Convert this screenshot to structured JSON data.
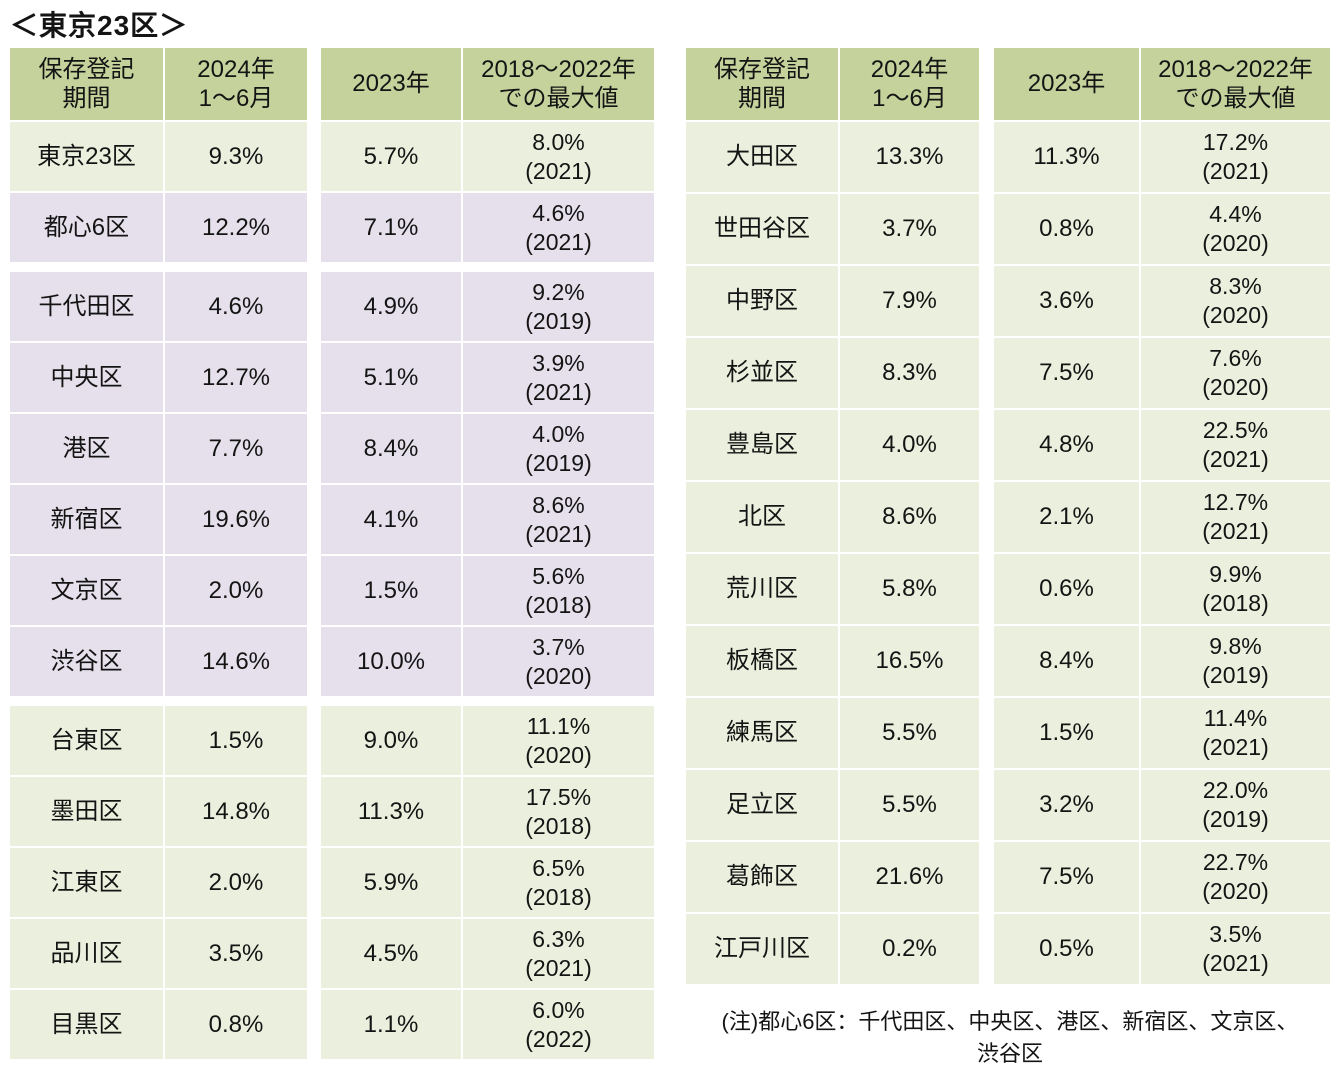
{
  "title": "＜東京23区＞",
  "note": "(注)都心6区：千代田区、中央区、港区、新宿区、文京区、\n渋谷区",
  "colors": {
    "header_green": "#C5D29C",
    "row_light_green": "#EBF0DE",
    "row_lavender": "#E5E0EB",
    "text": "#141414",
    "background": "#FFFFFF"
  },
  "chart_data": [
    {
      "type": "table",
      "title": "＜東京23区＞ (左表)",
      "columns": [
        "保存登記\n期間",
        "2024年\n1～6月",
        "2023年",
        "2018～2022年\nでの最大値"
      ],
      "rows": [
        [
          "東京23区",
          "9.3%",
          "5.7%",
          "8.0%\n(2021)"
        ],
        [
          "都心6区",
          "12.2%",
          "7.1%",
          "4.6%\n(2021)"
        ],
        [
          "千代田区",
          "4.6%",
          "4.9%",
          "9.2%\n(2019)"
        ],
        [
          "中央区",
          "12.7%",
          "5.1%",
          "3.9%\n(2021)"
        ],
        [
          "港区",
          "7.7%",
          "8.4%",
          "4.0%\n(2019)"
        ],
        [
          "新宿区",
          "19.6%",
          "4.1%",
          "8.6%\n(2021)"
        ],
        [
          "文京区",
          "2.0%",
          "1.5%",
          "5.6%\n(2018)"
        ],
        [
          "渋谷区",
          "14.6%",
          "10.0%",
          "3.7%\n(2020)"
        ],
        [
          "台東区",
          "1.5%",
          "9.0%",
          "11.1%\n(2020)"
        ],
        [
          "墨田区",
          "14.8%",
          "11.3%",
          "17.5%\n(2018)"
        ],
        [
          "江東区",
          "2.0%",
          "5.9%",
          "6.5%\n(2018)"
        ],
        [
          "品川区",
          "3.5%",
          "4.5%",
          "6.3%\n(2021)"
        ],
        [
          "目黒区",
          "0.8%",
          "1.1%",
          "6.0%\n(2022)"
        ]
      ]
    },
    {
      "type": "table",
      "title": "＜東京23区＞ (右表)",
      "columns": [
        "保存登記\n期間",
        "2024年\n1～6月",
        "2023年",
        "2018～2022年\nでの最大値"
      ],
      "rows": [
        [
          "大田区",
          "13.3%",
          "11.3%",
          "17.2%\n(2021)"
        ],
        [
          "世田谷区",
          "3.7%",
          "0.8%",
          "4.4%\n(2020)"
        ],
        [
          "中野区",
          "7.9%",
          "3.6%",
          "8.3%\n(2020)"
        ],
        [
          "杉並区",
          "8.3%",
          "7.5%",
          "7.6%\n(2020)"
        ],
        [
          "豊島区",
          "4.0%",
          "4.8%",
          "22.5%\n(2021)"
        ],
        [
          "北区",
          "8.6%",
          "2.1%",
          "12.7%\n(2021)"
        ],
        [
          "荒川区",
          "5.8%",
          "0.6%",
          "9.9%\n(2018)"
        ],
        [
          "板橋区",
          "16.5%",
          "8.4%",
          "9.8%\n(2019)"
        ],
        [
          "練馬区",
          "5.5%",
          "1.5%",
          "11.4%\n(2021)"
        ],
        [
          "足立区",
          "5.5%",
          "3.2%",
          "22.0%\n(2019)"
        ],
        [
          "葛飾区",
          "21.6%",
          "7.5%",
          "22.7%\n(2020)"
        ],
        [
          "江戸川区",
          "0.2%",
          "0.5%",
          "3.5%\n(2021)"
        ]
      ]
    }
  ]
}
